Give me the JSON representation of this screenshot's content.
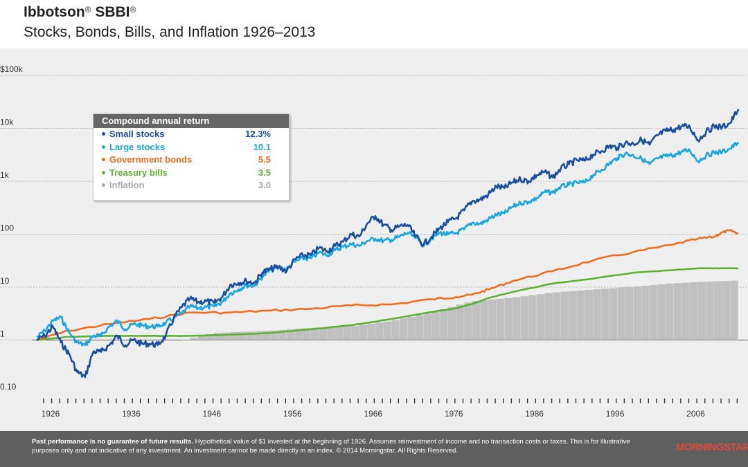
{
  "header": {
    "title_main": "Ibbotson",
    "title_reg": "®",
    "title_sbbi": " SBBI",
    "title_reg2": "®",
    "subtitle": "Stocks, Bonds, Bills, and Inflation 1926–2013"
  },
  "legend": {
    "title": "Compound annual return",
    "items": [
      {
        "label": "Small stocks",
        "value": "12.3%",
        "color": "#1b4fa0"
      },
      {
        "label": "Large stocks",
        "value": "10.1",
        "color": "#1aa7e1"
      },
      {
        "label": "Government bonds",
        "value": "5.5",
        "color": "#ef6c22"
      },
      {
        "label": "Treasury bills",
        "value": "3.5",
        "color": "#5fb135"
      },
      {
        "label": "Inflation",
        "value": "3.0",
        "color": "#a8a8a8"
      }
    ]
  },
  "chart_data": {
    "type": "line",
    "y_scale": "log",
    "ylim": [
      0.1,
      100000
    ],
    "xlim": [
      1926,
      2013
    ],
    "y_ticks": [
      {
        "value": 100000,
        "label": "$100k"
      },
      {
        "value": 10000,
        "label": "10k"
      },
      {
        "value": 1000,
        "label": "1k"
      },
      {
        "value": 100,
        "label": "100"
      },
      {
        "value": 10,
        "label": "10"
      },
      {
        "value": 1,
        "label": "1"
      },
      {
        "value": 0.1,
        "label": "0.10"
      }
    ],
    "x_ticks": [
      "1926",
      "1936",
      "1946",
      "1956",
      "1966",
      "1976",
      "1986",
      "1996",
      "2006"
    ],
    "series": [
      {
        "name": "Small stocks",
        "color": "#1b4fa0",
        "x": [
          1926,
          1927,
          1928,
          1929,
          1930,
          1931,
          1932,
          1933,
          1934,
          1935,
          1936,
          1937,
          1938,
          1939,
          1940,
          1941,
          1942,
          1943,
          1944,
          1945,
          1946,
          1947,
          1948,
          1949,
          1950,
          1951,
          1952,
          1953,
          1954,
          1955,
          1956,
          1957,
          1958,
          1959,
          1960,
          1961,
          1962,
          1963,
          1964,
          1965,
          1966,
          1967,
          1968,
          1969,
          1970,
          1971,
          1972,
          1973,
          1974,
          1975,
          1976,
          1977,
          1978,
          1979,
          1980,
          1981,
          1982,
          1983,
          1984,
          1985,
          1986,
          1987,
          1988,
          1989,
          1990,
          1991,
          1992,
          1993,
          1994,
          1995,
          1996,
          1997,
          1998,
          1999,
          2000,
          2001,
          2002,
          2003,
          2004,
          2005,
          2006,
          2007,
          2008,
          2009,
          2010,
          2011,
          2012,
          2013
        ],
        "y": [
          1.0,
          1.2,
          1.8,
          0.9,
          0.55,
          0.25,
          0.2,
          0.6,
          0.6,
          0.8,
          1.2,
          0.8,
          1.0,
          0.85,
          0.85,
          0.8,
          1.2,
          2.6,
          4.2,
          6.0,
          5.2,
          5.4,
          5.0,
          6.5,
          11,
          12,
          13,
          12,
          19,
          22,
          24,
          20,
          33,
          40,
          40,
          55,
          48,
          60,
          72,
          100,
          90,
          160,
          220,
          150,
          120,
          140,
          150,
          90,
          65,
          90,
          130,
          170,
          200,
          280,
          420,
          450,
          560,
          800,
          740,
          950,
          1100,
          1000,
          1300,
          1500,
          1180,
          1750,
          2100,
          2500,
          2450,
          3200,
          3700,
          4600,
          4300,
          5300,
          5100,
          6100,
          4900,
          7400,
          8900,
          9400,
          11000,
          10500,
          6000,
          8500,
          11000,
          10500,
          12700,
          23000
        ]
      },
      {
        "name": "Large stocks",
        "color": "#1aa7e1",
        "x": [
          1926,
          1927,
          1928,
          1929,
          1930,
          1931,
          1932,
          1933,
          1934,
          1935,
          1936,
          1937,
          1938,
          1939,
          1940,
          1941,
          1942,
          1943,
          1944,
          1945,
          1946,
          1947,
          1948,
          1949,
          1950,
          1951,
          1952,
          1953,
          1954,
          1955,
          1956,
          1957,
          1958,
          1959,
          1960,
          1961,
          1962,
          1963,
          1964,
          1965,
          1966,
          1967,
          1968,
          1969,
          1970,
          1971,
          1972,
          1973,
          1974,
          1975,
          1976,
          1977,
          1978,
          1979,
          1980,
          1981,
          1982,
          1983,
          1984,
          1985,
          1986,
          1987,
          1988,
          1989,
          1990,
          1991,
          1992,
          1993,
          1994,
          1995,
          1996,
          1997,
          1998,
          1999,
          2000,
          2001,
          2002,
          2003,
          2004,
          2005,
          2006,
          2007,
          2008,
          2009,
          2010,
          2011,
          2012,
          2013
        ],
        "y": [
          1.12,
          1.5,
          2.3,
          2.7,
          1.4,
          0.9,
          0.8,
          1.2,
          1.2,
          1.8,
          2.3,
          1.6,
          2.0,
          1.9,
          1.8,
          1.8,
          2.1,
          2.6,
          3.2,
          4.3,
          4.0,
          4.2,
          4.3,
          5.2,
          7.6,
          9.0,
          10.8,
          10.6,
          16.0,
          21.0,
          23.0,
          22.0,
          30.0,
          35.0,
          35.0,
          45.0,
          40.0,
          50.0,
          58.0,
          65.0,
          60.0,
          75.0,
          82.0,
          75.0,
          78.0,
          90.0,
          106.0,
          85.0,
          60.0,
          85.0,
          106.0,
          99.0,
          105.0,
          124.0,
          165.0,
          157.0,
          190.0,
          234.0,
          248.0,
          328.0,
          389.0,
          409.0,
          477.0,
          628.0,
          608.0,
          793.0,
          854.0,
          940.0,
          952.0,
          1310.0,
          1612.0,
          2150.0,
          2764.0,
          3347.0,
          3043.0,
          2681.0,
          2089.0,
          2688.0,
          2980.0,
          3127.0,
          3620.0,
          3819.0,
          2406.0,
          3043.0,
          3501.0,
          3575.0,
          4147.0,
          5492.0
        ]
      },
      {
        "name": "Government bonds",
        "color": "#ef6c22",
        "x": [
          1926,
          1930,
          1935,
          1940,
          1945,
          1950,
          1955,
          1960,
          1965,
          1970,
          1975,
          1978,
          1980,
          1982,
          1985,
          1990,
          1995,
          2000,
          2005,
          2008,
          2010,
          2011,
          2012,
          2013
        ],
        "y": [
          1.0,
          1.5,
          2.0,
          2.5,
          3.3,
          3.3,
          3.6,
          3.9,
          4.5,
          4.7,
          5.9,
          6.5,
          7.2,
          9.0,
          13.0,
          20.0,
          32.0,
          46.0,
          64.0,
          82.0,
          89.0,
          108.0,
          118.0,
          103.0
        ]
      },
      {
        "name": "Treasury bills",
        "color": "#5fb135",
        "x": [
          1926,
          1930,
          1935,
          1940,
          1945,
          1950,
          1955,
          1960,
          1965,
          1970,
          1975,
          1978,
          1980,
          1982,
          1985,
          1990,
          1995,
          2000,
          2005,
          2008,
          2010,
          2011,
          2012,
          2013
        ],
        "y": [
          1.0,
          1.15,
          1.2,
          1.2,
          1.2,
          1.26,
          1.36,
          1.6,
          1.9,
          2.5,
          3.4,
          4.0,
          4.8,
          6.2,
          8.1,
          11.7,
          14.5,
          18.7,
          21.0,
          22.6,
          22.7,
          22.7,
          22.7,
          22.7
        ]
      },
      {
        "name": "Inflation",
        "color": "#b0b0b0",
        "x": [
          1926,
          1930,
          1933,
          1940,
          1945,
          1948,
          1950,
          1955,
          1960,
          1965,
          1970,
          1975,
          1980,
          1985,
          1990,
          1995,
          2000,
          2005,
          2010,
          2013
        ],
        "y": [
          1.0,
          0.9,
          0.75,
          0.8,
          1.05,
          1.35,
          1.4,
          1.5,
          1.7,
          1.8,
          2.3,
          3.3,
          5.4,
          6.3,
          7.9,
          9.0,
          10.2,
          11.8,
          12.9,
          13.3
        ]
      }
    ]
  },
  "footer": {
    "bold": "Past performance is no guarantee of future results.",
    "text": " Hypothetical value of $1 invested at the beginning of 1926. Assumes reinvestment of income and no transaction costs or taxes. This is for illustrative purposes only and not indicative of any investment. An investment cannot be made directly in an index. © 2014 Morningstar. All Rights Reserved.",
    "brand": "MORNINGSTAR"
  }
}
